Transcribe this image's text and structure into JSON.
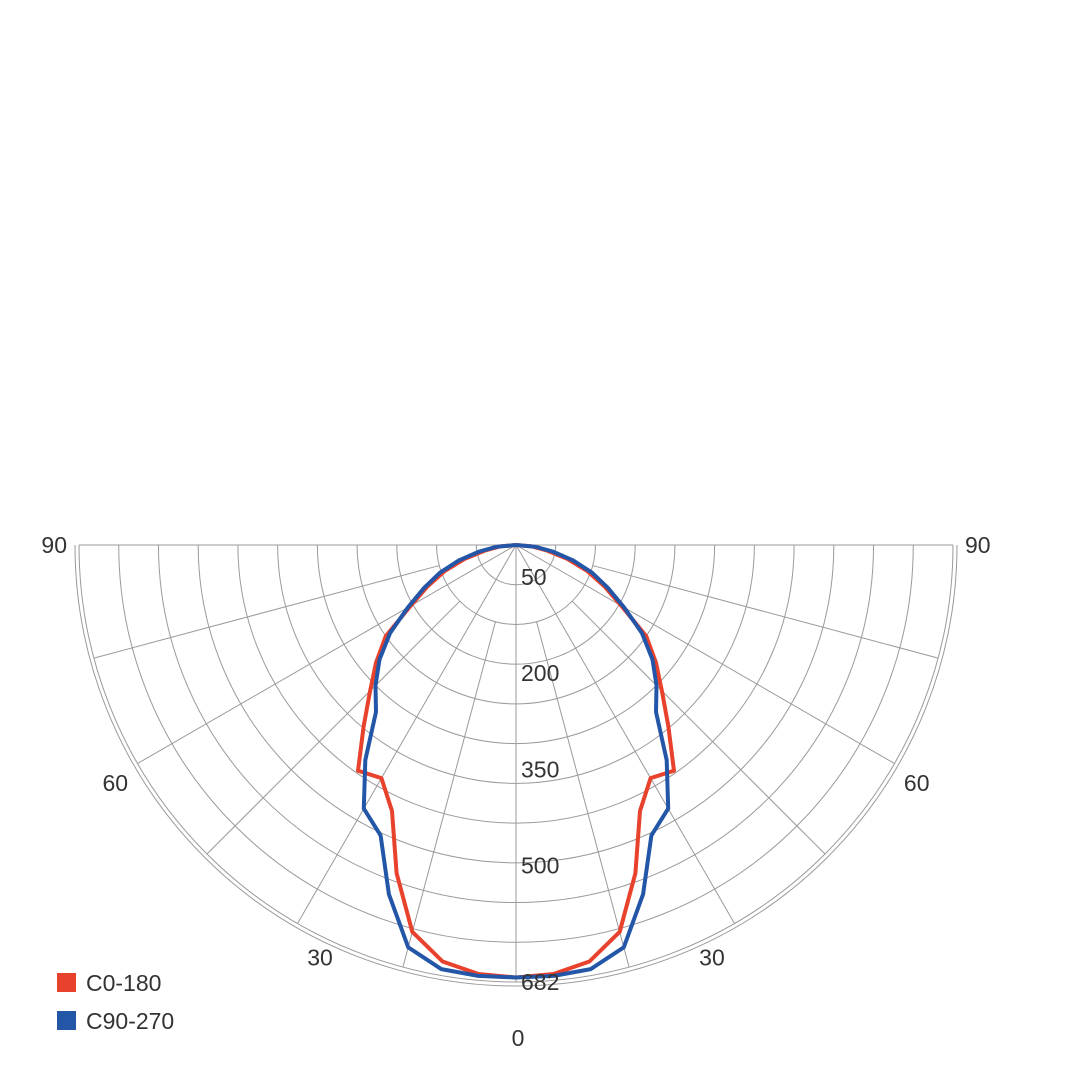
{
  "chart_data": {
    "type": "polar",
    "subtype": "luminous-intensity-distribution",
    "title": "",
    "angle_unit": "degrees",
    "angle_ticks": [
      {
        "value": 90,
        "side": "left",
        "label": "90"
      },
      {
        "value": 60,
        "side": "left",
        "label": "60"
      },
      {
        "value": 30,
        "side": "left",
        "label": "30"
      },
      {
        "value": 0,
        "side": "center",
        "label": "0"
      },
      {
        "value": 30,
        "side": "right",
        "label": "30"
      },
      {
        "value": 60,
        "side": "right",
        "label": "60"
      },
      {
        "value": 90,
        "side": "right",
        "label": "90"
      }
    ],
    "radial_max": 682,
    "radial_ring_count": 11,
    "radial_tick_labels": [
      {
        "value": 50,
        "label": "50"
      },
      {
        "value": 200,
        "label": "200"
      },
      {
        "value": 350,
        "label": "350"
      },
      {
        "value": 500,
        "label": "500"
      },
      {
        "value": 682,
        "label": "682"
      }
    ],
    "spoke_step_deg": 15,
    "grid": true,
    "legend_position": "bottom-left",
    "series": [
      {
        "name": "C0-180",
        "color": "#e8412c",
        "angles": [
          -90,
          -85,
          -80,
          -75,
          -70,
          -65,
          -60,
          -55,
          -50,
          -45,
          -40,
          -35,
          -30,
          -25,
          -20,
          -15,
          -10,
          -5,
          0,
          5,
          10,
          15,
          20,
          25,
          30,
          35,
          40,
          45,
          50,
          55,
          60,
          65,
          70,
          75,
          80,
          85,
          90
        ],
        "values": [
          0,
          25,
          48,
          82,
          118,
          152,
          190,
          248,
          285,
          322,
          370,
          430,
          420,
          458,
          545,
          625,
          660,
          672,
          675,
          672,
          660,
          625,
          545,
          458,
          420,
          430,
          370,
          322,
          285,
          248,
          190,
          152,
          118,
          82,
          48,
          25,
          0
        ]
      },
      {
        "name": "C90-270",
        "color": "#2456a8",
        "angles": [
          -90,
          -85,
          -80,
          -75,
          -70,
          -65,
          -60,
          -55,
          -50,
          -45,
          -40,
          -35,
          -30,
          -25,
          -20,
          -15,
          -10,
          -5,
          0,
          5,
          10,
          15,
          20,
          25,
          30,
          35,
          40,
          45,
          50,
          55,
          60,
          65,
          70,
          75,
          80,
          85,
          90
        ],
        "values": [
          0,
          30,
          58,
          92,
          126,
          158,
          195,
          240,
          278,
          310,
          340,
          410,
          475,
          500,
          580,
          650,
          672,
          675,
          675,
          675,
          672,
          650,
          580,
          500,
          475,
          410,
          340,
          310,
          278,
          240,
          195,
          158,
          126,
          92,
          58,
          30,
          0
        ]
      }
    ]
  }
}
